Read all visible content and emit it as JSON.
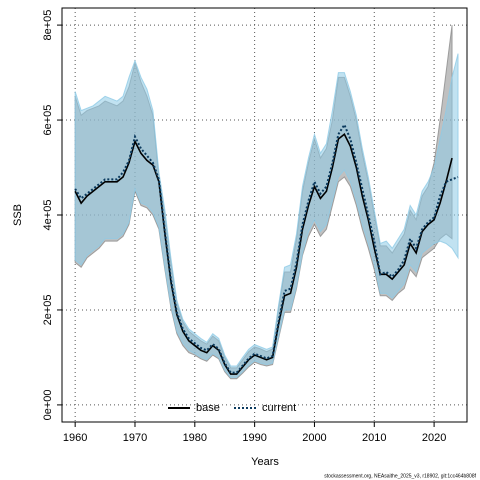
{
  "chart_data": {
    "type": "line",
    "x_label": "Years",
    "y_label": "SSB",
    "footnote": "stockassessment.org, NEAsaithe_2025_v3, r18902, git:1cc464b808f",
    "xlim": [
      1957.8,
      2025.5
    ],
    "ylim": [
      -36000,
      836000
    ],
    "xticks": [
      1960,
      1970,
      1980,
      1990,
      2000,
      2010,
      2020
    ],
    "yticks": [
      {
        "value": 0,
        "label": "0e+00"
      },
      {
        "value": 200000,
        "label": "2e+05"
      },
      {
        "value": 400000,
        "label": "4e+05"
      },
      {
        "value": 600000,
        "label": "6e+05"
      },
      {
        "value": 800000,
        "label": "8e+05"
      }
    ],
    "grid": true,
    "legend": "bottom",
    "series": [
      {
        "name": "base",
        "color": "#000000",
        "band_color": "#8c8c8c",
        "dash": "solid",
        "x": [
          1960,
          1961,
          1962,
          1963,
          1964,
          1965,
          1966,
          1967,
          1968,
          1969,
          1970,
          1971,
          1972,
          1973,
          1974,
          1975,
          1976,
          1977,
          1978,
          1979,
          1980,
          1981,
          1982,
          1983,
          1984,
          1985,
          1986,
          1987,
          1988,
          1989,
          1990,
          1991,
          1992,
          1993,
          1994,
          1995,
          1996,
          1997,
          1998,
          1999,
          2000,
          2001,
          2002,
          2003,
          2004,
          2005,
          2006,
          2007,
          2008,
          2009,
          2010,
          2011,
          2012,
          2013,
          2014,
          2015,
          2016,
          2017,
          2018,
          2019,
          2020,
          2021,
          2022,
          2023
        ],
        "values": [
          450000,
          425000,
          440000,
          450000,
          460000,
          470000,
          470000,
          470000,
          480000,
          510000,
          555000,
          530000,
          515000,
          505000,
          470000,
          360000,
          260000,
          190000,
          155000,
          135000,
          125000,
          115000,
          110000,
          125000,
          115000,
          85000,
          65000,
          65000,
          80000,
          95000,
          105000,
          100000,
          95000,
          100000,
          170000,
          230000,
          235000,
          290000,
          370000,
          420000,
          460000,
          435000,
          450000,
          500000,
          560000,
          570000,
          545000,
          500000,
          440000,
          390000,
          330000,
          275000,
          275000,
          265000,
          280000,
          295000,
          340000,
          320000,
          365000,
          380000,
          390000,
          425000,
          470000,
          520000
        ],
        "upper": [
          650000,
          610000,
          620000,
          625000,
          630000,
          640000,
          635000,
          630000,
          640000,
          670000,
          720000,
          680000,
          650000,
          610000,
          480000,
          400000,
          300000,
          215000,
          175000,
          155000,
          145000,
          135000,
          128000,
          145000,
          135000,
          100000,
          78000,
          78000,
          95000,
          112000,
          122000,
          118000,
          112000,
          118000,
          205000,
          280000,
          280000,
          350000,
          450000,
          510000,
          560000,
          520000,
          540000,
          600000,
          690000,
          690000,
          650000,
          600000,
          530000,
          470000,
          400000,
          335000,
          335000,
          320000,
          340000,
          360000,
          410000,
          390000,
          440000,
          460000,
          510000,
          600000,
          700000,
          800000
        ],
        "lower": [
          300000,
          290000,
          310000,
          320000,
          330000,
          345000,
          345000,
          345000,
          355000,
          380000,
          450000,
          420000,
          415000,
          400000,
          370000,
          285000,
          205000,
          150000,
          125000,
          110000,
          105000,
          97000,
          92000,
          105000,
          97000,
          70000,
          55000,
          55000,
          67000,
          80000,
          90000,
          85000,
          82000,
          85000,
          140000,
          195000,
          195000,
          245000,
          315000,
          355000,
          380000,
          355000,
          370000,
          420000,
          470000,
          480000,
          460000,
          420000,
          370000,
          330000,
          285000,
          230000,
          230000,
          220000,
          235000,
          245000,
          285000,
          270000,
          310000,
          320000,
          330000,
          350000,
          360000,
          350000
        ]
      },
      {
        "name": "current",
        "color": "#0b3a5e",
        "band_color": "#8ecae6",
        "dash": "dotted",
        "x": [
          1960,
          1961,
          1962,
          1963,
          1964,
          1965,
          1966,
          1967,
          1968,
          1969,
          1970,
          1971,
          1972,
          1973,
          1974,
          1975,
          1976,
          1977,
          1978,
          1979,
          1980,
          1981,
          1982,
          1983,
          1984,
          1985,
          1986,
          1987,
          1988,
          1989,
          1990,
          1991,
          1992,
          1993,
          1994,
          1995,
          1996,
          1997,
          1998,
          1999,
          2000,
          2001,
          2002,
          2003,
          2004,
          2005,
          2006,
          2007,
          2008,
          2009,
          2010,
          2011,
          2012,
          2013,
          2014,
          2015,
          2016,
          2017,
          2018,
          2019,
          2020,
          2021,
          2022,
          2023,
          2024
        ],
        "values": [
          455000,
          435000,
          445000,
          455000,
          465000,
          475000,
          475000,
          475000,
          490000,
          515000,
          565000,
          540000,
          525000,
          510000,
          475000,
          365000,
          265000,
          195000,
          160000,
          140000,
          130000,
          120000,
          115000,
          128000,
          118000,
          88000,
          68000,
          68000,
          83000,
          98000,
          108000,
          103000,
          98000,
          103000,
          175000,
          240000,
          245000,
          300000,
          380000,
          430000,
          470000,
          445000,
          460000,
          510000,
          570000,
          590000,
          560000,
          510000,
          455000,
          400000,
          345000,
          275000,
          280000,
          270000,
          285000,
          305000,
          350000,
          330000,
          370000,
          385000,
          395000,
          440000,
          470000,
          475000,
          480000
        ],
        "upper": [
          660000,
          620000,
          625000,
          630000,
          640000,
          650000,
          645000,
          640000,
          650000,
          690000,
          725000,
          690000,
          665000,
          620000,
          490000,
          410000,
          310000,
          220000,
          180000,
          160000,
          150000,
          140000,
          132000,
          150000,
          140000,
          105000,
          82000,
          82000,
          100000,
          117000,
          127000,
          122000,
          117000,
          122000,
          210000,
          290000,
          295000,
          360000,
          460000,
          520000,
          570000,
          530000,
          550000,
          620000,
          700000,
          700000,
          660000,
          610000,
          540000,
          480000,
          410000,
          340000,
          345000,
          330000,
          350000,
          370000,
          420000,
          400000,
          450000,
          470000,
          500000,
          560000,
          620000,
          690000,
          740000
        ],
        "lower": [
          305000,
          295000,
          315000,
          325000,
          335000,
          350000,
          350000,
          350000,
          360000,
          385000,
          455000,
          425000,
          420000,
          405000,
          375000,
          290000,
          210000,
          155000,
          130000,
          115000,
          108000,
          100000,
          95000,
          108000,
          100000,
          73000,
          58000,
          58000,
          70000,
          83000,
          93000,
          88000,
          85000,
          88000,
          145000,
          200000,
          200000,
          250000,
          320000,
          365000,
          390000,
          365000,
          380000,
          430000,
          480000,
          495000,
          470000,
          430000,
          380000,
          340000,
          295000,
          235000,
          235000,
          225000,
          240000,
          255000,
          295000,
          280000,
          320000,
          330000,
          340000,
          345000,
          340000,
          330000,
          310000
        ]
      }
    ]
  }
}
